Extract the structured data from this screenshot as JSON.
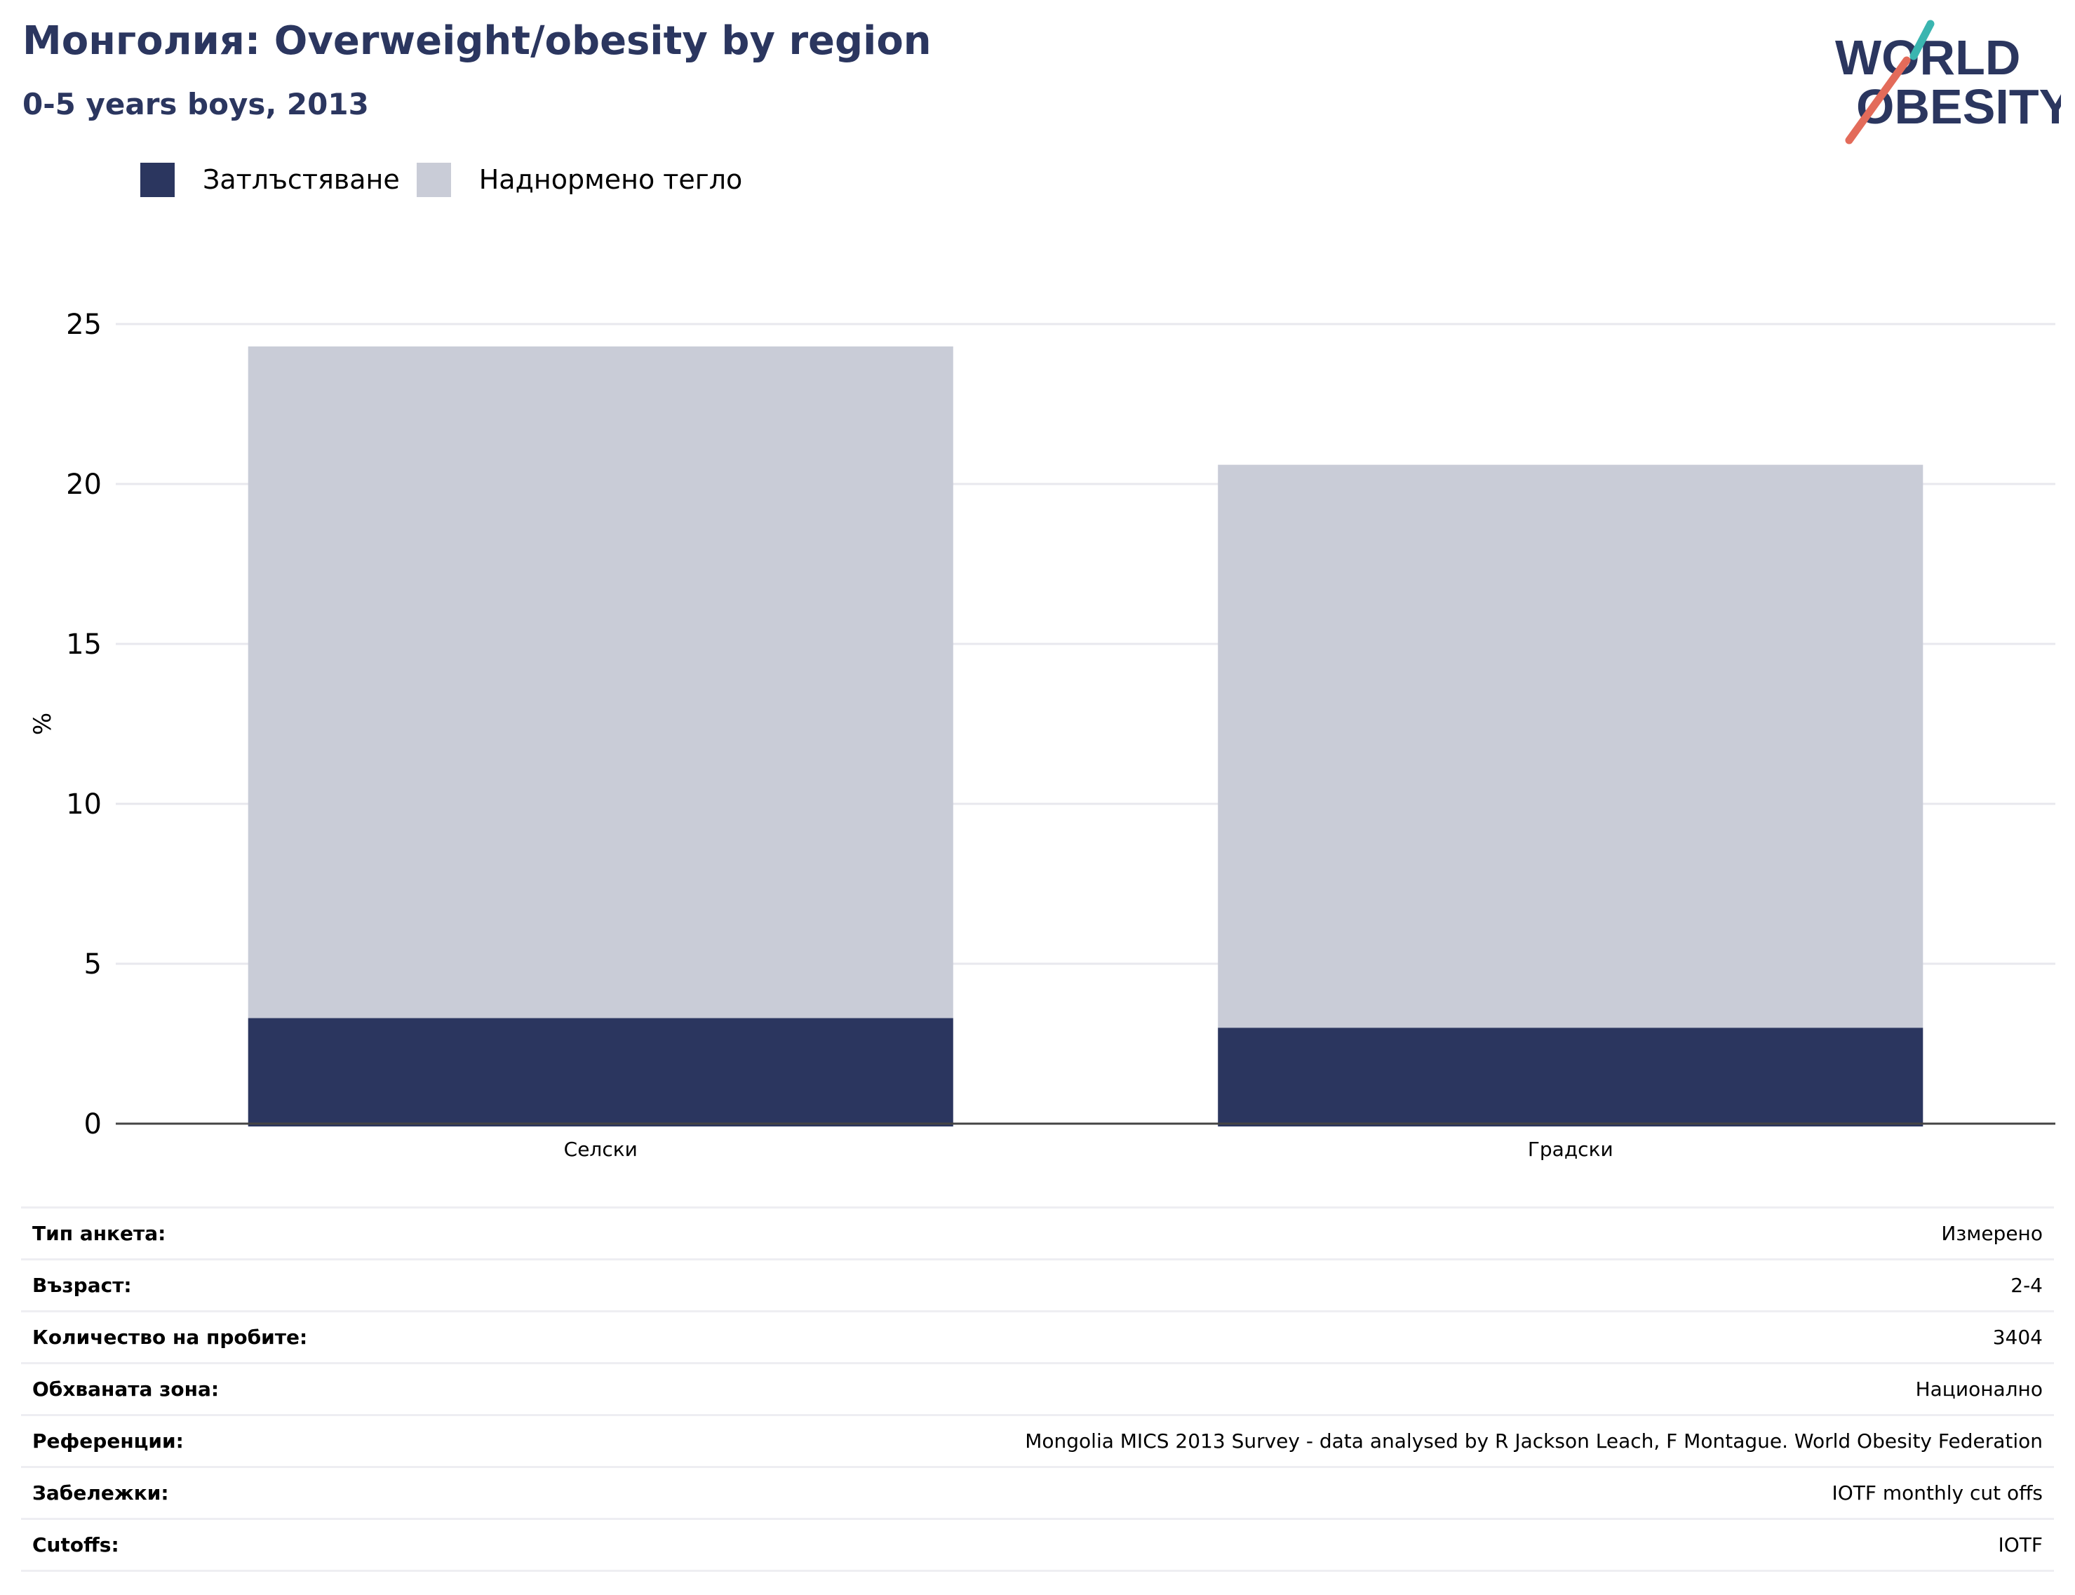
{
  "header": {
    "title": "Монголия: Overweight/obesity by region",
    "subtitle": "0-5 years boys, 2013"
  },
  "logo": {
    "line1": "WORLD",
    "line2": "OBESITY",
    "accent_teal": "#3ab5b0",
    "accent_red": "#e36b5a",
    "text_color": "#2b365f"
  },
  "chart_data": {
    "type": "bar",
    "stacked": true,
    "categories": [
      "Селски",
      "Градски"
    ],
    "series": [
      {
        "name": "Затлъстяване",
        "color": "#2b365f",
        "values": [
          3.3,
          3.0
        ]
      },
      {
        "name": "Наднормено тегло",
        "color": "#c9ccd7",
        "values": [
          21.0,
          17.6
        ]
      }
    ],
    "ylabel": "%",
    "ylim": [
      0,
      25
    ],
    "yticks": [
      "0",
      "5",
      "10",
      "15",
      "20",
      "25"
    ],
    "grid": true,
    "legend_position": "top-left"
  },
  "info": [
    {
      "label": "Тип анкета:",
      "value": "Измерено"
    },
    {
      "label": "Възраст:",
      "value": "2-4"
    },
    {
      "label": "Количество на пробите:",
      "value": "3404"
    },
    {
      "label": "Обхваната зона:",
      "value": "Национално"
    },
    {
      "label": "Референции:",
      "value": "Mongolia MICS 2013 Survey - data analysed by R Jackson Leach, F Montague. World Obesity Federation"
    },
    {
      "label": "Забележки:",
      "value": "IOTF monthly cut offs"
    },
    {
      "label": "Cutoffs:",
      "value": "IOTF"
    }
  ]
}
